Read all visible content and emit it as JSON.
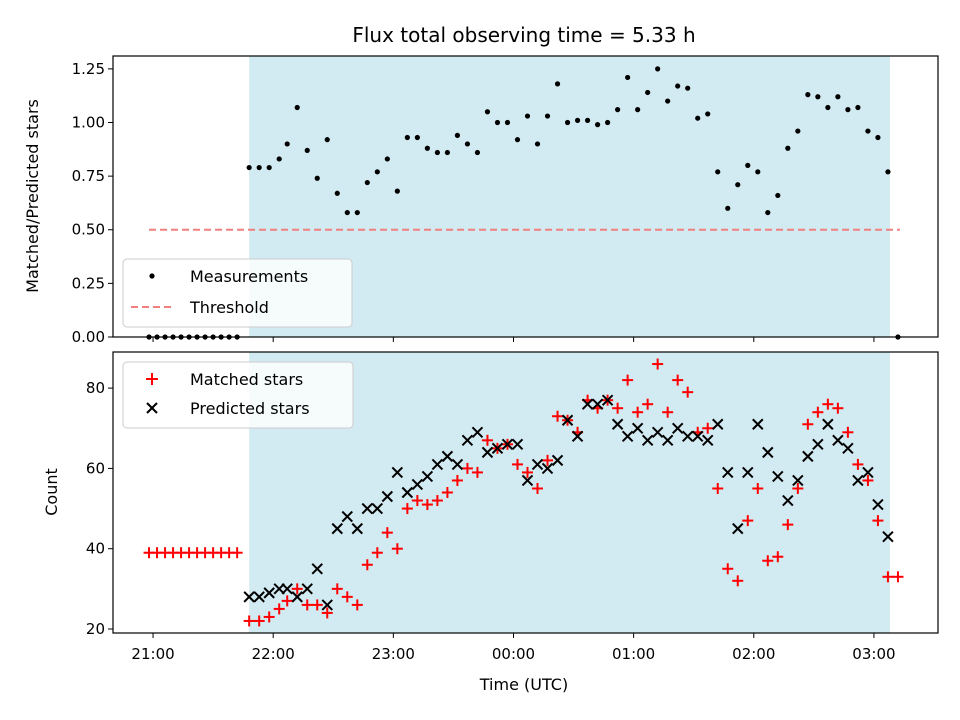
{
  "chart_data": [
    {
      "type": "scatter",
      "title": "Flux total observing time = 5.33 h",
      "xlabel": "",
      "ylabel": "Matched/Predicted stars",
      "ylim": [
        0,
        1.31
      ],
      "y_ticks": [
        "0.00",
        "0.25",
        "0.50",
        "0.75",
        "1.00",
        "1.25"
      ],
      "y_tick_values": [
        0,
        0.25,
        0.5,
        0.75,
        1.0,
        1.25
      ],
      "x_tick_times": [
        "21:00",
        "22:00",
        "23:00",
        "00:00",
        "01:00",
        "02:00",
        "03:00"
      ],
      "xlim": [
        "20:40",
        "03:32"
      ],
      "shaded_region": {
        "start": "21:48",
        "end": "03:08",
        "color": "#add8e6"
      },
      "legend": {
        "placement": "lower-left",
        "entries": [
          "Measurements",
          "Threshold"
        ]
      },
      "threshold": {
        "value": 0.5,
        "start": "20:58",
        "end": "03:13",
        "color": "#f08080"
      },
      "series": [
        {
          "name": "Measurements",
          "color": "#000000",
          "marker": "dot",
          "points": [
            [
              "20:58",
              0
            ],
            [
              "21:02",
              0
            ],
            [
              "21:06",
              0
            ],
            [
              "21:10",
              0
            ],
            [
              "21:14",
              0
            ],
            [
              "21:18",
              0
            ],
            [
              "21:22",
              0
            ],
            [
              "21:26",
              0
            ],
            [
              "21:30",
              0
            ],
            [
              "21:34",
              0
            ],
            [
              "21:38",
              0
            ],
            [
              "21:42",
              0
            ],
            [
              "21:48",
              0.79
            ],
            [
              "21:53",
              0.79
            ],
            [
              "21:58",
              0.79
            ],
            [
              "22:03",
              0.83
            ],
            [
              "22:07",
              0.9
            ],
            [
              "22:12",
              1.07
            ],
            [
              "22:17",
              0.87
            ],
            [
              "22:22",
              0.74
            ],
            [
              "22:27",
              0.92
            ],
            [
              "22:32",
              0.67
            ],
            [
              "22:37",
              0.58
            ],
            [
              "22:42",
              0.58
            ],
            [
              "22:47",
              0.72
            ],
            [
              "22:52",
              0.77
            ],
            [
              "22:57",
              0.83
            ],
            [
              "23:02",
              0.68
            ],
            [
              "23:07",
              0.93
            ],
            [
              "23:12",
              0.93
            ],
            [
              "23:17",
              0.88
            ],
            [
              "23:22",
              0.86
            ],
            [
              "23:27",
              0.86
            ],
            [
              "23:32",
              0.94
            ],
            [
              "23:37",
              0.9
            ],
            [
              "23:42",
              0.86
            ],
            [
              "23:47",
              1.05
            ],
            [
              "23:52",
              1.0
            ],
            [
              "23:57",
              1.0
            ],
            [
              "00:02",
              0.92
            ],
            [
              "00:07",
              1.03
            ],
            [
              "00:12",
              0.9
            ],
            [
              "00:17",
              1.03
            ],
            [
              "00:22",
              1.18
            ],
            [
              "00:27",
              1.0
            ],
            [
              "00:32",
              1.01
            ],
            [
              "00:37",
              1.01
            ],
            [
              "00:42",
              0.99
            ],
            [
              "00:47",
              1.0
            ],
            [
              "00:52",
              1.06
            ],
            [
              "00:57",
              1.21
            ],
            [
              "01:02",
              1.06
            ],
            [
              "01:07",
              1.14
            ],
            [
              "01:12",
              1.25
            ],
            [
              "01:17",
              1.1
            ],
            [
              "01:22",
              1.17
            ],
            [
              "01:27",
              1.16
            ],
            [
              "01:32",
              1.02
            ],
            [
              "01:37",
              1.04
            ],
            [
              "01:42",
              0.77
            ],
            [
              "01:47",
              0.6
            ],
            [
              "01:52",
              0.71
            ],
            [
              "01:57",
              0.8
            ],
            [
              "02:02",
              0.77
            ],
            [
              "02:07",
              0.58
            ],
            [
              "02:12",
              0.66
            ],
            [
              "02:17",
              0.88
            ],
            [
              "02:22",
              0.96
            ],
            [
              "02:27",
              1.13
            ],
            [
              "02:32",
              1.12
            ],
            [
              "02:37",
              1.07
            ],
            [
              "02:42",
              1.12
            ],
            [
              "02:47",
              1.06
            ],
            [
              "02:52",
              1.07
            ],
            [
              "02:57",
              0.96
            ],
            [
              "03:02",
              0.93
            ],
            [
              "03:07",
              0.77
            ],
            [
              "03:12",
              0
            ]
          ]
        }
      ]
    },
    {
      "type": "scatter",
      "title": "",
      "xlabel": "Time (UTC)",
      "ylabel": "Count",
      "ylim": [
        19,
        89
      ],
      "y_ticks": [
        "20",
        "40",
        "60",
        "80"
      ],
      "y_tick_values": [
        20,
        40,
        60,
        80
      ],
      "x_tick_labels": [
        "21:00",
        "22:00",
        "23:00",
        "00:00",
        "01:00",
        "02:00",
        "03:00"
      ],
      "x_tick_times": [
        "21:00",
        "22:00",
        "23:00",
        "00:00",
        "01:00",
        "02:00",
        "03:00"
      ],
      "xlim": [
        "20:40",
        "03:32"
      ],
      "shaded_region": {
        "start": "21:48",
        "end": "03:08",
        "color": "#add8e6"
      },
      "legend": {
        "placement": "upper-left",
        "entries": [
          "Matched stars",
          "Predicted stars"
        ]
      },
      "series": [
        {
          "name": "Matched stars",
          "color": "#ff0000",
          "marker": "plus",
          "points": [
            [
              "20:58",
              39
            ],
            [
              "21:02",
              39
            ],
            [
              "21:06",
              39
            ],
            [
              "21:10",
              39
            ],
            [
              "21:14",
              39
            ],
            [
              "21:18",
              39
            ],
            [
              "21:22",
              39
            ],
            [
              "21:26",
              39
            ],
            [
              "21:30",
              39
            ],
            [
              "21:34",
              39
            ],
            [
              "21:38",
              39
            ],
            [
              "21:42",
              39
            ],
            [
              "21:48",
              22
            ],
            [
              "21:53",
              22
            ],
            [
              "21:58",
              23
            ],
            [
              "22:03",
              25
            ],
            [
              "22:07",
              27
            ],
            [
              "22:12",
              30
            ],
            [
              "22:17",
              26
            ],
            [
              "22:22",
              26
            ],
            [
              "22:27",
              24
            ],
            [
              "22:32",
              30
            ],
            [
              "22:37",
              28
            ],
            [
              "22:42",
              26
            ],
            [
              "22:47",
              36
            ],
            [
              "22:52",
              39
            ],
            [
              "22:57",
              44
            ],
            [
              "23:02",
              40
            ],
            [
              "23:07",
              50
            ],
            [
              "23:12",
              52
            ],
            [
              "23:17",
              51
            ],
            [
              "23:22",
              52
            ],
            [
              "23:27",
              54
            ],
            [
              "23:32",
              57
            ],
            [
              "23:37",
              60
            ],
            [
              "23:42",
              59
            ],
            [
              "23:47",
              67
            ],
            [
              "23:52",
              65
            ],
            [
              "23:57",
              66
            ],
            [
              "00:02",
              61
            ],
            [
              "00:07",
              59
            ],
            [
              "00:12",
              55
            ],
            [
              "00:17",
              62
            ],
            [
              "00:22",
              73
            ],
            [
              "00:27",
              72
            ],
            [
              "00:32",
              69
            ],
            [
              "00:37",
              77
            ],
            [
              "00:42",
              75
            ],
            [
              "00:47",
              77
            ],
            [
              "00:52",
              75
            ],
            [
              "00:57",
              82
            ],
            [
              "01:02",
              74
            ],
            [
              "01:07",
              76
            ],
            [
              "01:12",
              86
            ],
            [
              "01:17",
              74
            ],
            [
              "01:22",
              82
            ],
            [
              "01:27",
              79
            ],
            [
              "01:32",
              69
            ],
            [
              "01:37",
              70
            ],
            [
              "01:42",
              55
            ],
            [
              "01:47",
              35
            ],
            [
              "01:52",
              32
            ],
            [
              "01:57",
              47
            ],
            [
              "02:02",
              55
            ],
            [
              "02:07",
              37
            ],
            [
              "02:12",
              38
            ],
            [
              "02:17",
              46
            ],
            [
              "02:22",
              55
            ],
            [
              "02:27",
              71
            ],
            [
              "02:32",
              74
            ],
            [
              "02:37",
              76
            ],
            [
              "02:42",
              75
            ],
            [
              "02:47",
              69
            ],
            [
              "02:52",
              61
            ],
            [
              "02:57",
              57
            ],
            [
              "03:02",
              47
            ],
            [
              "03:07",
              33
            ],
            [
              "03:12",
              33
            ]
          ]
        },
        {
          "name": "Predicted stars",
          "color": "#000000",
          "marker": "x",
          "points": [
            [
              "21:48",
              28
            ],
            [
              "21:53",
              28
            ],
            [
              "21:58",
              29
            ],
            [
              "22:03",
              30
            ],
            [
              "22:07",
              30
            ],
            [
              "22:12",
              28
            ],
            [
              "22:17",
              30
            ],
            [
              "22:22",
              35
            ],
            [
              "22:27",
              26
            ],
            [
              "22:32",
              45
            ],
            [
              "22:37",
              48
            ],
            [
              "22:42",
              45
            ],
            [
              "22:47",
              50
            ],
            [
              "22:52",
              50
            ],
            [
              "22:57",
              53
            ],
            [
              "23:02",
              59
            ],
            [
              "23:07",
              54
            ],
            [
              "23:12",
              56
            ],
            [
              "23:17",
              58
            ],
            [
              "23:22",
              61
            ],
            [
              "23:27",
              63
            ],
            [
              "23:32",
              61
            ],
            [
              "23:37",
              67
            ],
            [
              "23:42",
              69
            ],
            [
              "23:47",
              64
            ],
            [
              "23:52",
              65
            ],
            [
              "23:57",
              66
            ],
            [
              "00:02",
              66
            ],
            [
              "00:07",
              57
            ],
            [
              "00:12",
              61
            ],
            [
              "00:17",
              60
            ],
            [
              "00:22",
              62
            ],
            [
              "00:27",
              72
            ],
            [
              "00:32",
              68
            ],
            [
              "00:37",
              76
            ],
            [
              "00:42",
              76
            ],
            [
              "00:47",
              77
            ],
            [
              "00:52",
              71
            ],
            [
              "00:57",
              68
            ],
            [
              "01:02",
              70
            ],
            [
              "01:07",
              67
            ],
            [
              "01:12",
              69
            ],
            [
              "01:17",
              67
            ],
            [
              "01:22",
              70
            ],
            [
              "01:27",
              68
            ],
            [
              "01:32",
              68
            ],
            [
              "01:37",
              67
            ],
            [
              "01:42",
              71
            ],
            [
              "01:47",
              59
            ],
            [
              "01:52",
              45
            ],
            [
              "01:57",
              59
            ],
            [
              "02:02",
              71
            ],
            [
              "02:07",
              64
            ],
            [
              "02:12",
              58
            ],
            [
              "02:17",
              52
            ],
            [
              "02:22",
              57
            ],
            [
              "02:27",
              63
            ],
            [
              "02:32",
              66
            ],
            [
              "02:37",
              71
            ],
            [
              "02:42",
              67
            ],
            [
              "02:47",
              65
            ],
            [
              "02:52",
              57
            ],
            [
              "02:57",
              59
            ],
            [
              "03:02",
              51
            ],
            [
              "03:07",
              43
            ]
          ]
        }
      ]
    }
  ]
}
